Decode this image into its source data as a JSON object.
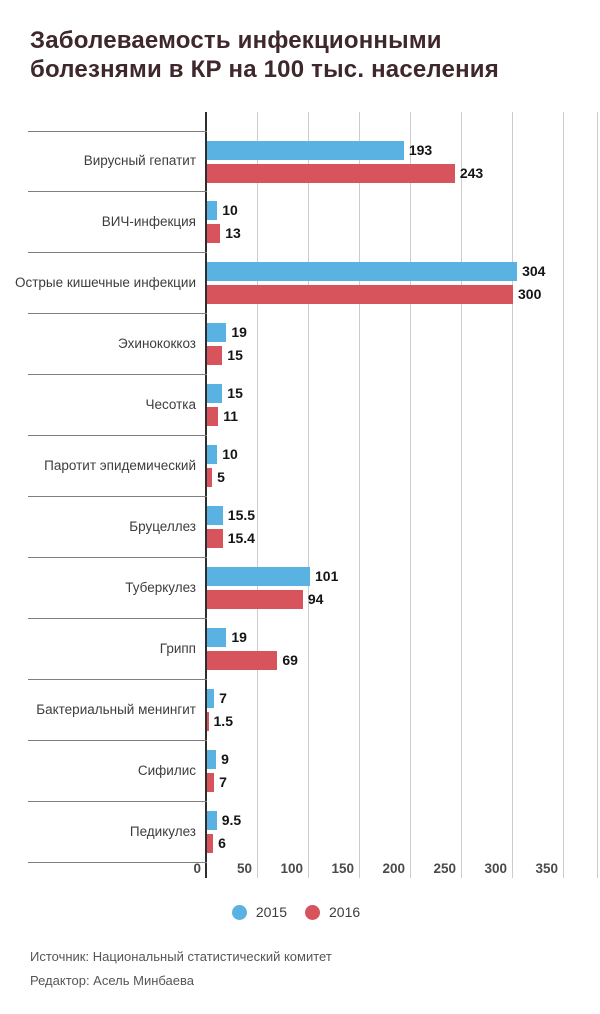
{
  "title": {
    "line1": "Заболеваемость инфекционными",
    "line2": "болезнями в КР на 100 тыс. населения"
  },
  "chart_data": {
    "type": "bar",
    "orientation": "horizontal",
    "title": "Заболеваемость инфекционными болезнями в КР на 100 тыс. населения",
    "categories": [
      "Вирусный гепатит",
      "ВИЧ-инфекция",
      "Острые кишечные инфекции",
      "Эхинококкоз",
      "Чесотка",
      "Паротит эпидемический",
      "Бруцеллез",
      "Туберкулез",
      "Грипп",
      "Бактериальный менингит",
      "Сифилис",
      "Педикулез"
    ],
    "series": [
      {
        "name": "2015",
        "color": "#5ab2e3",
        "values": [
          193,
          10,
          304,
          19,
          15,
          10,
          15.5,
          101,
          19,
          7,
          9,
          9.5
        ]
      },
      {
        "name": "2016",
        "color": "#d8545c",
        "values": [
          243,
          13,
          300,
          15,
          11,
          5,
          15.4,
          94,
          69,
          1.5,
          7,
          6
        ]
      }
    ],
    "x_ticks": [
      0,
      50,
      100,
      150,
      200,
      250,
      300,
      350
    ],
    "xlim": [
      0,
      385
    ],
    "grid": true,
    "value_labels": true,
    "legend_position": "bottom"
  },
  "footer": {
    "source": "Источник: Национальный статистический комитет",
    "editor": "Редактор: Асель Минбаева"
  },
  "colors": {
    "title": "#3e282b",
    "axis_line": "#2e2e2e",
    "gridline": "#cccccc",
    "row_divider": "#808080",
    "category_label": "#3d3d3d",
    "value_label": "#141414",
    "tick_label": "#4a4a4a",
    "footer_text": "#565656",
    "background": "#ffffff",
    "bar_2015": "#5ab2e3",
    "bar_2016": "#d8545c"
  }
}
